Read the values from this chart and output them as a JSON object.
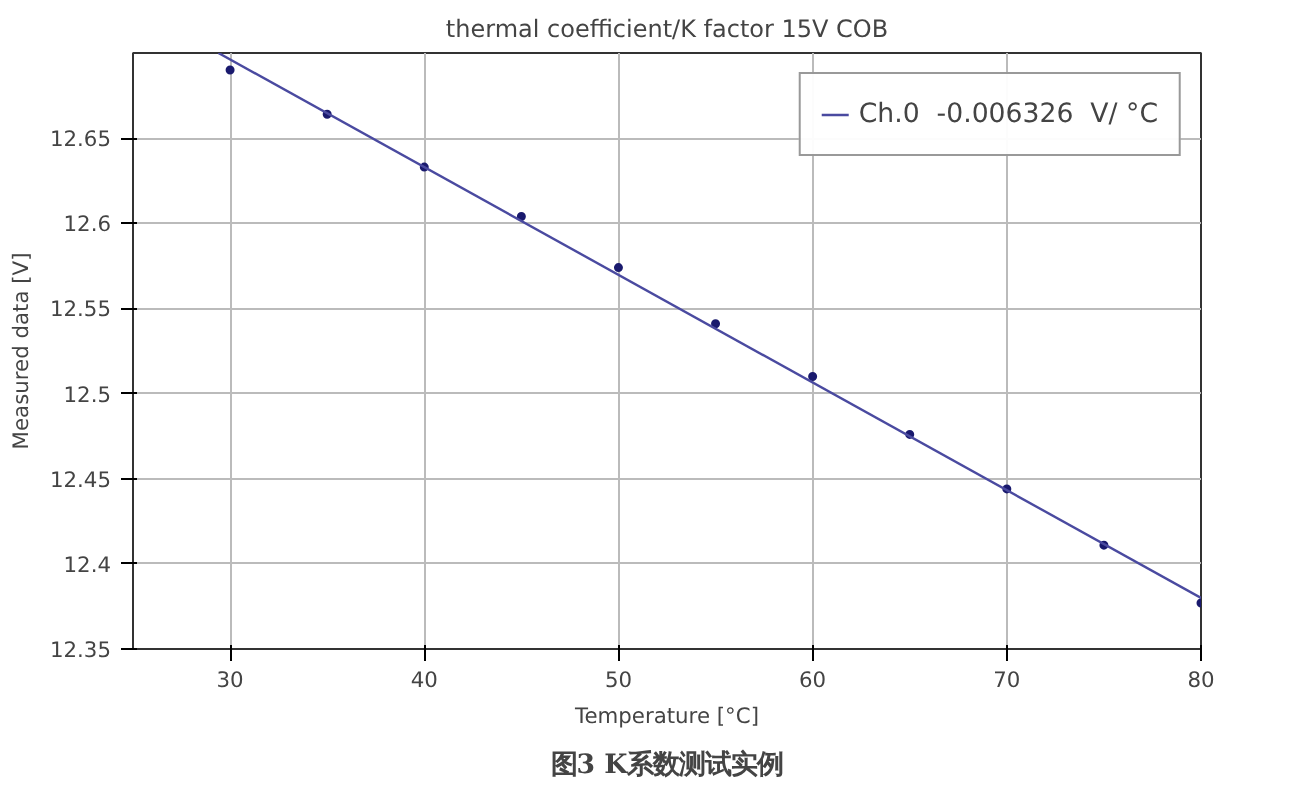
{
  "chart_data": {
    "type": "scatter",
    "title": "thermal coefficient/K factor 15V COB",
    "xlabel": "Temperature [°C]",
    "ylabel": "Measured data [V]",
    "annotations": [
      "图3 K系数测试实例"
    ],
    "x": [
      30,
      35,
      40,
      45,
      50,
      55,
      60,
      65,
      70,
      75,
      80
    ],
    "series": [
      {
        "color": "#1a1a6e",
        "values": [
          12.69,
          12.664,
          12.633,
          12.604,
          12.574,
          12.541,
          12.51,
          12.476,
          12.444,
          12.411,
          12.377
        ],
        "marker": "circle"
      },
      {
        "type": "line",
        "name": "Ch.0  -0.006326  V/ °C",
        "color": "#4a4aa0",
        "x": [
          29.4,
          80
        ],
        "values": [
          12.7,
          12.38
        ],
        "marker": "none"
      }
    ],
    "xlim": [
      25,
      80
    ],
    "xticks": [
      30,
      40,
      50,
      60,
      70,
      80
    ],
    "ylim": [
      12.35,
      12.7
    ],
    "yticks": [
      12.35,
      12.4,
      12.45,
      12.5,
      12.55,
      12.6,
      12.65
    ],
    "grid": true,
    "legend": "top right"
  }
}
